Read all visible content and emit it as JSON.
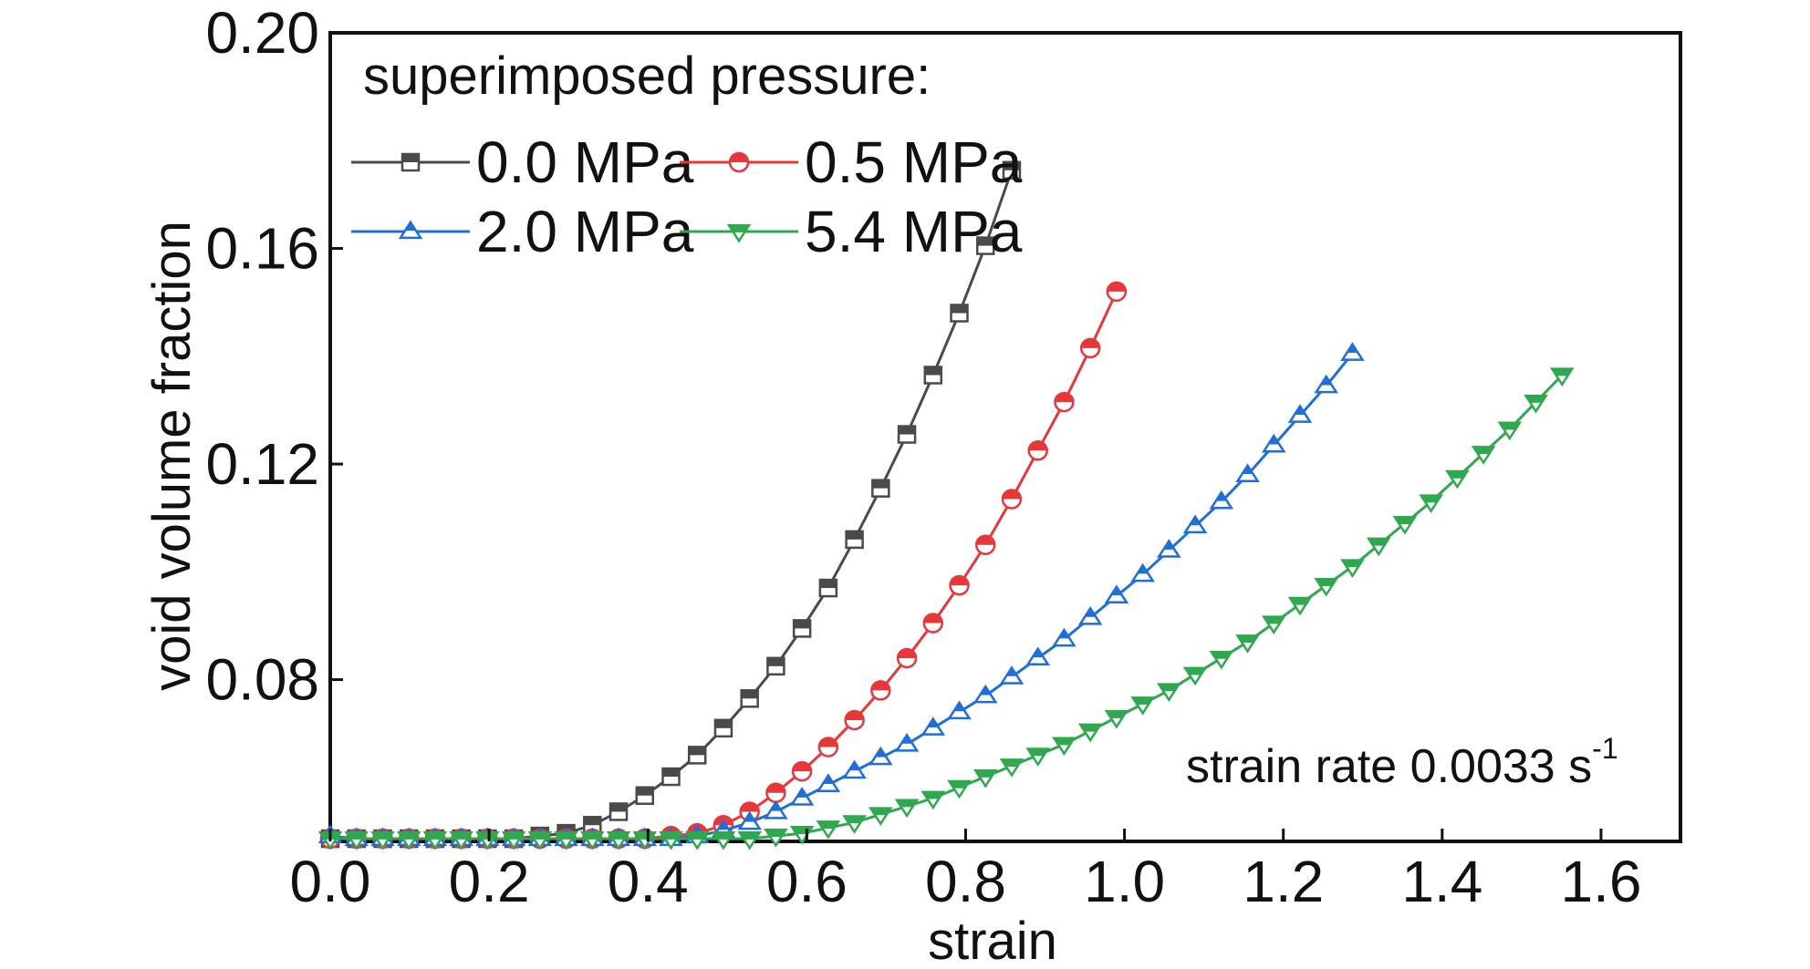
{
  "chart_data": {
    "type": "line",
    "xlabel": "strain",
    "ylabel": "void volume fraction",
    "xlim": [
      0.0,
      1.7
    ],
    "ylim": [
      0.05,
      0.2
    ],
    "xticks": [
      "0.0",
      "0.2",
      "0.4",
      "0.6",
      "0.8",
      "1.0",
      "1.2",
      "1.4",
      "1.6"
    ],
    "yticks": [
      "0.08",
      "0.12",
      "0.16",
      "0.20"
    ],
    "ytick_values": [
      0.08,
      0.12,
      0.16,
      0.2
    ],
    "xtick_values": [
      0.0,
      0.2,
      0.4,
      0.6,
      0.8,
      1.0,
      1.2,
      1.4,
      1.6
    ],
    "grid": false,
    "legend_title": "superimposed pressure:",
    "legend_position": "top-left",
    "annotation": {
      "text": "strain rate 0.0033 s",
      "superscript": "-1"
    },
    "series": [
      {
        "name": "0.0 MPa",
        "color": "#4a4a4a",
        "marker": "square-half",
        "x": [
          0.0,
          0.033,
          0.066,
          0.099,
          0.132,
          0.165,
          0.198,
          0.231,
          0.264,
          0.297,
          0.33,
          0.363,
          0.396,
          0.429,
          0.462,
          0.495,
          0.528,
          0.561,
          0.594,
          0.627,
          0.66,
          0.693,
          0.726,
          0.759,
          0.792,
          0.825,
          0.858
        ],
        "y": [
          0.0505,
          0.0505,
          0.0505,
          0.0505,
          0.0505,
          0.0505,
          0.0505,
          0.0505,
          0.051,
          0.0515,
          0.053,
          0.0555,
          0.0585,
          0.062,
          0.066,
          0.071,
          0.0765,
          0.0825,
          0.0895,
          0.097,
          0.106,
          0.1155,
          0.1255,
          0.1365,
          0.148,
          0.1605,
          0.1745
        ]
      },
      {
        "name": "0.5 MPa",
        "color": "#e8373a",
        "marker": "circle-half",
        "x": [
          0.0,
          0.033,
          0.066,
          0.099,
          0.132,
          0.165,
          0.198,
          0.231,
          0.264,
          0.297,
          0.33,
          0.363,
          0.396,
          0.429,
          0.462,
          0.495,
          0.528,
          0.561,
          0.594,
          0.627,
          0.66,
          0.693,
          0.726,
          0.759,
          0.792,
          0.825,
          0.858,
          0.891,
          0.924,
          0.957,
          0.99
        ],
        "y": [
          0.0505,
          0.0505,
          0.0505,
          0.0505,
          0.0505,
          0.0505,
          0.0505,
          0.0505,
          0.0505,
          0.0505,
          0.0505,
          0.0505,
          0.0505,
          0.051,
          0.0515,
          0.053,
          0.0555,
          0.059,
          0.063,
          0.0675,
          0.0725,
          0.078,
          0.084,
          0.0905,
          0.0975,
          0.105,
          0.1135,
          0.1225,
          0.1315,
          0.1415,
          0.152
        ]
      },
      {
        "name": "2.0 MPa",
        "color": "#1f6fd6",
        "marker": "triangle-up-half",
        "x": [
          0.0,
          0.033,
          0.066,
          0.099,
          0.132,
          0.165,
          0.198,
          0.231,
          0.264,
          0.297,
          0.33,
          0.363,
          0.396,
          0.429,
          0.462,
          0.495,
          0.528,
          0.561,
          0.594,
          0.627,
          0.66,
          0.693,
          0.726,
          0.759,
          0.792,
          0.825,
          0.858,
          0.891,
          0.924,
          0.957,
          0.99,
          1.023,
          1.056,
          1.089,
          1.122,
          1.155,
          1.188,
          1.221,
          1.254,
          1.287
        ],
        "y": [
          0.051,
          0.0505,
          0.0505,
          0.0505,
          0.0505,
          0.0505,
          0.0505,
          0.0505,
          0.0505,
          0.0505,
          0.0505,
          0.0505,
          0.0505,
          0.0505,
          0.051,
          0.052,
          0.0535,
          0.0555,
          0.058,
          0.0605,
          0.063,
          0.0655,
          0.068,
          0.071,
          0.074,
          0.077,
          0.0805,
          0.084,
          0.0875,
          0.0915,
          0.0955,
          0.0995,
          0.104,
          0.1085,
          0.113,
          0.118,
          0.1235,
          0.129,
          0.1345,
          0.1405
        ]
      },
      {
        "name": "5.4 MPa",
        "color": "#2fa84f",
        "marker": "triangle-down-half",
        "x": [
          0.0,
          0.033,
          0.066,
          0.099,
          0.132,
          0.165,
          0.198,
          0.231,
          0.264,
          0.297,
          0.33,
          0.363,
          0.396,
          0.429,
          0.462,
          0.495,
          0.528,
          0.561,
          0.594,
          0.627,
          0.66,
          0.693,
          0.726,
          0.759,
          0.792,
          0.825,
          0.858,
          0.891,
          0.924,
          0.957,
          0.99,
          1.023,
          1.056,
          1.089,
          1.122,
          1.155,
          1.188,
          1.221,
          1.254,
          1.287,
          1.32,
          1.353,
          1.386,
          1.419,
          1.452,
          1.485,
          1.518,
          1.551
        ],
        "y": [
          0.0505,
          0.0505,
          0.0505,
          0.0505,
          0.0505,
          0.0505,
          0.0505,
          0.0505,
          0.0505,
          0.0505,
          0.0505,
          0.0505,
          0.0505,
          0.0505,
          0.0505,
          0.0505,
          0.0505,
          0.051,
          0.0515,
          0.0525,
          0.0535,
          0.055,
          0.0565,
          0.058,
          0.06,
          0.062,
          0.064,
          0.066,
          0.068,
          0.0705,
          0.073,
          0.0755,
          0.078,
          0.081,
          0.084,
          0.087,
          0.0905,
          0.094,
          0.0975,
          0.101,
          0.105,
          0.109,
          0.113,
          0.1175,
          0.122,
          0.1265,
          0.1315,
          0.1365
        ]
      }
    ]
  }
}
